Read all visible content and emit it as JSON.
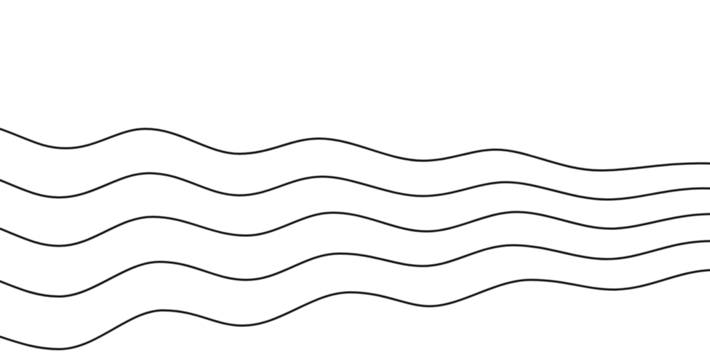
{
  "artwork": {
    "kind": "wavy-lines-pattern",
    "line_count": 5,
    "background_color": "#ffffff",
    "line_color": "#111111"
  }
}
